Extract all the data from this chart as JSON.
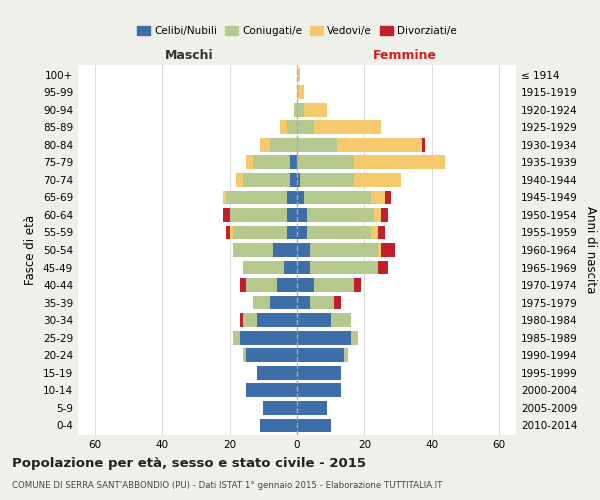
{
  "age_groups_bottom_to_top": [
    "0-4",
    "5-9",
    "10-14",
    "15-19",
    "20-24",
    "25-29",
    "30-34",
    "35-39",
    "40-44",
    "45-49",
    "50-54",
    "55-59",
    "60-64",
    "65-69",
    "70-74",
    "75-79",
    "80-84",
    "85-89",
    "90-94",
    "95-99",
    "100+"
  ],
  "birth_years_bottom_to_top": [
    "2010-2014",
    "2005-2009",
    "2000-2004",
    "1995-1999",
    "1990-1994",
    "1985-1989",
    "1980-1984",
    "1975-1979",
    "1970-1974",
    "1965-1969",
    "1960-1964",
    "1955-1959",
    "1950-1954",
    "1945-1949",
    "1940-1944",
    "1935-1939",
    "1930-1934",
    "1925-1929",
    "1920-1924",
    "1915-1919",
    "≤ 1914"
  ],
  "colors": {
    "celibi": "#3d6ea8",
    "coniugati": "#b5c98e",
    "vedovi": "#f5c96e",
    "divorziati": "#c0202a"
  },
  "maschi": {
    "celibi": [
      11,
      10,
      15,
      12,
      15,
      17,
      12,
      8,
      6,
      4,
      7,
      3,
      3,
      3,
      2,
      2,
      0,
      0,
      0,
      0,
      0
    ],
    "coniugati": [
      0,
      0,
      0,
      0,
      1,
      2,
      4,
      5,
      9,
      12,
      12,
      16,
      17,
      18,
      14,
      11,
      8,
      3,
      1,
      0,
      0
    ],
    "vedovi": [
      0,
      0,
      0,
      0,
      0,
      0,
      0,
      0,
      0,
      0,
      0,
      1,
      0,
      1,
      2,
      2,
      3,
      2,
      0,
      0,
      0
    ],
    "divorziati": [
      0,
      0,
      0,
      0,
      0,
      0,
      1,
      0,
      2,
      0,
      0,
      1,
      2,
      0,
      0,
      0,
      0,
      0,
      0,
      0,
      0
    ]
  },
  "femmine": {
    "celibi": [
      10,
      9,
      13,
      13,
      14,
      16,
      10,
      4,
      5,
      4,
      4,
      3,
      3,
      2,
      1,
      0,
      0,
      0,
      0,
      0,
      0
    ],
    "coniugati": [
      0,
      0,
      0,
      0,
      1,
      2,
      6,
      7,
      12,
      20,
      20,
      19,
      20,
      20,
      16,
      17,
      12,
      5,
      2,
      0,
      0
    ],
    "vedovi": [
      0,
      0,
      0,
      0,
      0,
      0,
      0,
      0,
      0,
      0,
      1,
      2,
      2,
      4,
      14,
      27,
      25,
      20,
      7,
      2,
      1
    ],
    "divorziati": [
      0,
      0,
      0,
      0,
      0,
      0,
      0,
      2,
      2,
      3,
      4,
      2,
      2,
      2,
      0,
      0,
      1,
      0,
      0,
      0,
      0
    ]
  },
  "xlim": 65,
  "title": "Popolazione per età, sesso e stato civile - 2015",
  "subtitle": "COMUNE DI SERRA SANT'ABBONDIO (PU) - Dati ISTAT 1° gennaio 2015 - Elaborazione TUTTITALIA.IT",
  "ylabel_left": "Fasce di età",
  "ylabel_right": "Anni di nascita",
  "label_maschi": "Maschi",
  "label_femmine": "Femmine",
  "legend_labels": [
    "Celibi/Nubili",
    "Coniugati/e",
    "Vedovi/e",
    "Divorziati/e"
  ],
  "bg_color": "#f0f0eb",
  "bar_bg_color": "#ffffff"
}
